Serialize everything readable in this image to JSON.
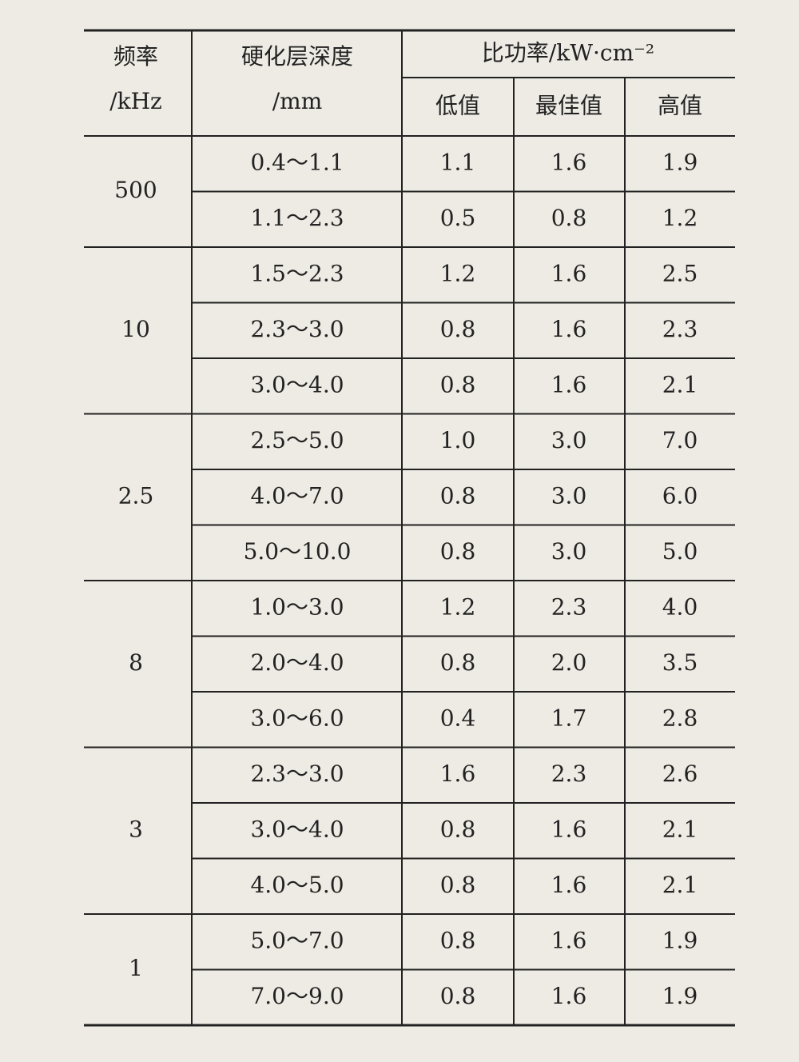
{
  "table": {
    "header": {
      "frequency": "频率\n/kHz",
      "depth": "硬化层深度\n/mm",
      "power": "比功率/kW·cm⁻²",
      "low": "低值",
      "best": "最佳值",
      "high": "高值"
    },
    "groups": [
      {
        "frequency": "500",
        "rows": [
          [
            "0.4～1.1",
            "1.1",
            "1.6",
            "1.9"
          ],
          [
            "1.1～2.3",
            "0.5",
            "0.8",
            "1.2"
          ]
        ]
      },
      {
        "frequency": "10",
        "rows": [
          [
            "1.5～2.3",
            "1.2",
            "1.6",
            "2.5"
          ],
          [
            "2.3～3.0",
            "0.8",
            "1.6",
            "2.3"
          ],
          [
            "3.0～4.0",
            "0.8",
            "1.6",
            "2.1"
          ]
        ]
      },
      {
        "frequency": "2.5",
        "rows": [
          [
            "2.5～5.0",
            "1.0",
            "3.0",
            "7.0"
          ],
          [
            "4.0～7.0",
            "0.8",
            "3.0",
            "6.0"
          ],
          [
            "5.0～10.0",
            "0.8",
            "3.0",
            "5.0"
          ]
        ]
      },
      {
        "frequency": "8",
        "rows": [
          [
            "1.0～3.0",
            "1.2",
            "2.3",
            "4.0"
          ],
          [
            "2.0～4.0",
            "0.8",
            "2.0",
            "3.5"
          ],
          [
            "3.0～6.0",
            "0.4",
            "1.7",
            "2.8"
          ]
        ]
      },
      {
        "frequency": "3",
        "rows": [
          [
            "2.3～3.0",
            "1.6",
            "2.3",
            "2.6"
          ],
          [
            "3.0～4.0",
            "0.8",
            "1.6",
            "2.1"
          ],
          [
            "4.0～5.0",
            "0.8",
            "1.6",
            "2.1"
          ]
        ]
      },
      {
        "frequency": "1",
        "rows": [
          [
            "5.0～7.0",
            "0.8",
            "1.6",
            "1.9"
          ],
          [
            "7.0～9.0",
            "0.8",
            "1.6",
            "1.9"
          ]
        ]
      }
    ]
  }
}
